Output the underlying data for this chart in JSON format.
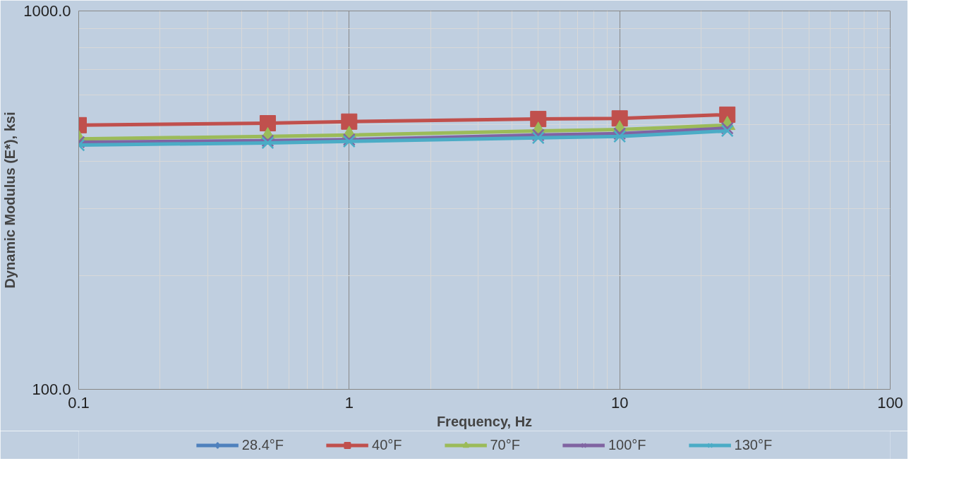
{
  "chart_data": {
    "type": "line",
    "xlabel": "Frequency, Hz",
    "ylabel": "Dynamic Modulus (E*), ksi",
    "x": [
      0.1,
      0.5,
      1,
      5,
      10,
      25
    ],
    "series": [
      {
        "name": "28.4°F",
        "color": "#4f81bd",
        "marker": "diamond",
        "values": [
          null,
          null,
          null,
          null,
          null,
          null
        ]
      },
      {
        "name": "40°F",
        "color": "#c0504d",
        "marker": "square",
        "values": [
          499,
          505,
          510,
          518,
          520,
          532
        ]
      },
      {
        "name": "70°F",
        "color": "#9bbb59",
        "marker": "triangle",
        "values": [
          459,
          466,
          470,
          482,
          486,
          499
        ]
      },
      {
        "name": "100°F",
        "color": "#8064a2",
        "marker": "cross",
        "values": [
          450,
          454,
          457,
          470,
          474,
          490
        ]
      },
      {
        "name": "130°F",
        "color": "#4bacc6",
        "marker": "cross",
        "values": [
          442,
          448,
          452,
          462,
          466,
          482
        ]
      }
    ],
    "log": "xy",
    "xlim": [
      0.1,
      100
    ],
    "ylim": [
      100,
      1000
    ],
    "xticks": [
      0.1,
      1,
      10,
      100
    ],
    "yticks": [
      {
        "value": 100,
        "label": "100.0"
      },
      {
        "value": 1000,
        "label": "1000.0"
      }
    ],
    "grid": true,
    "legend": "bottom",
    "line_style": "solid"
  }
}
